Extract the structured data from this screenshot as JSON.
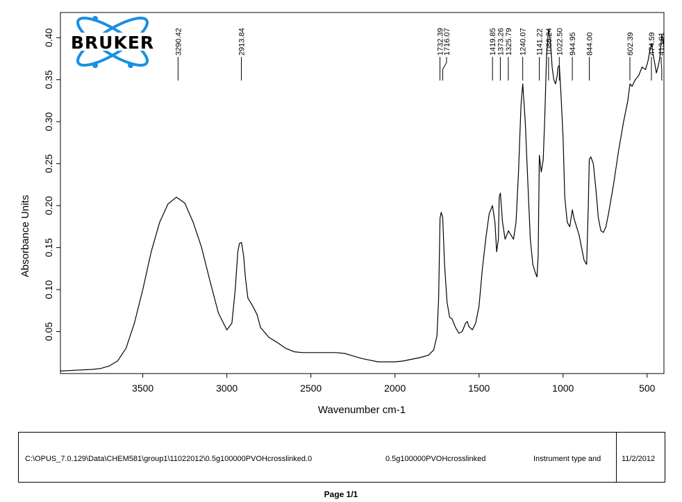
{
  "logo": {
    "text": "BRUKER",
    "ring_color": "#1a8fe3",
    "text_color": "#000000"
  },
  "chart_data": {
    "type": "line",
    "xlabel": "Wavenumber cm-1",
    "ylabel": "Absorbance Units",
    "xlim": [
      3990,
      400
    ],
    "ylim": [
      0.0,
      0.43
    ],
    "x_ticks": [
      3500,
      3000,
      2500,
      2000,
      1500,
      1000,
      500
    ],
    "x_tick_labels": [
      "3500",
      "3000",
      "2500",
      "2000",
      "1500",
      "1000",
      "500"
    ],
    "y_ticks": [
      0.05,
      0.1,
      0.15,
      0.2,
      0.25,
      0.3,
      0.35,
      0.4
    ],
    "y_tick_labels": [
      "0.05",
      "0.10",
      "0.15",
      "0.20",
      "0.25",
      "0.30",
      "0.35",
      "0.40"
    ],
    "series": [
      {
        "color": "#000000",
        "x": [
          3990,
          3900,
          3800,
          3750,
          3700,
          3650,
          3600,
          3550,
          3500,
          3450,
          3400,
          3350,
          3300,
          3250,
          3200,
          3150,
          3100,
          3050,
          3000,
          2970,
          2950,
          2935,
          2925,
          2913,
          2900,
          2890,
          2875,
          2860,
          2845,
          2820,
          2800,
          2750,
          2700,
          2650,
          2600,
          2550,
          2500,
          2450,
          2400,
          2350,
          2300,
          2250,
          2200,
          2150,
          2100,
          2050,
          2000,
          1950,
          1900,
          1850,
          1800,
          1770,
          1750,
          1740,
          1732,
          1725,
          1716,
          1705,
          1690,
          1675,
          1660,
          1640,
          1620,
          1600,
          1580,
          1570,
          1560,
          1540,
          1520,
          1500,
          1480,
          1460,
          1440,
          1420,
          1405,
          1395,
          1385,
          1380,
          1373,
          1360,
          1345,
          1335,
          1325,
          1310,
          1295,
          1280,
          1265,
          1250,
          1240,
          1225,
          1210,
          1195,
          1180,
          1165,
          1155,
          1148,
          1141,
          1130,
          1118,
          1108,
          1098,
          1086,
          1075,
          1065,
          1055,
          1045,
          1035,
          1030,
          1022,
          1012,
          1000,
          990,
          975,
          960,
          945,
          935,
          920,
          905,
          890,
          875,
          860,
          850,
          844,
          835,
          820,
          805,
          790,
          775,
          760,
          745,
          730,
          700,
          670,
          640,
          615,
          602,
          590,
          570,
          550,
          530,
          510,
          495,
          485,
          474,
          465,
          455,
          445,
          435,
          425,
          413,
          405,
          400
        ],
        "y": [
          0.003,
          0.004,
          0.005,
          0.006,
          0.009,
          0.015,
          0.03,
          0.06,
          0.1,
          0.145,
          0.18,
          0.202,
          0.21,
          0.203,
          0.18,
          0.15,
          0.11,
          0.072,
          0.052,
          0.06,
          0.1,
          0.145,
          0.155,
          0.156,
          0.14,
          0.115,
          0.09,
          0.085,
          0.08,
          0.07,
          0.055,
          0.043,
          0.037,
          0.03,
          0.026,
          0.025,
          0.025,
          0.025,
          0.025,
          0.025,
          0.024,
          0.021,
          0.018,
          0.016,
          0.014,
          0.014,
          0.014,
          0.015,
          0.017,
          0.019,
          0.022,
          0.028,
          0.045,
          0.09,
          0.185,
          0.192,
          0.186,
          0.13,
          0.085,
          0.067,
          0.065,
          0.055,
          0.048,
          0.05,
          0.06,
          0.062,
          0.056,
          0.052,
          0.06,
          0.08,
          0.125,
          0.16,
          0.19,
          0.2,
          0.18,
          0.145,
          0.16,
          0.21,
          0.215,
          0.18,
          0.16,
          0.165,
          0.17,
          0.165,
          0.16,
          0.18,
          0.24,
          0.32,
          0.345,
          0.3,
          0.23,
          0.16,
          0.13,
          0.12,
          0.115,
          0.14,
          0.26,
          0.24,
          0.255,
          0.31,
          0.38,
          0.41,
          0.395,
          0.365,
          0.35,
          0.345,
          0.355,
          0.365,
          0.367,
          0.33,
          0.28,
          0.21,
          0.18,
          0.175,
          0.195,
          0.185,
          0.175,
          0.165,
          0.15,
          0.135,
          0.13,
          0.2,
          0.255,
          0.258,
          0.25,
          0.22,
          0.185,
          0.17,
          0.168,
          0.175,
          0.19,
          0.225,
          0.265,
          0.3,
          0.325,
          0.345,
          0.342,
          0.35,
          0.355,
          0.365,
          0.362,
          0.372,
          0.383,
          0.393,
          0.38,
          0.37,
          0.358,
          0.365,
          0.375,
          0.404,
          0.393,
          0.398
        ]
      }
    ],
    "peak_labels": [
      {
        "x": 3290.42,
        "label": "3290.42"
      },
      {
        "x": 2913.84,
        "label": "2913.84"
      },
      {
        "x": 1732.39,
        "label": "1732.39"
      },
      {
        "x": 1716.07,
        "label": "1716.07"
      },
      {
        "x": 1419.85,
        "label": "1419.85"
      },
      {
        "x": 1373.26,
        "label": "1373.26"
      },
      {
        "x": 1325.79,
        "label": "1325.79"
      },
      {
        "x": 1240.07,
        "label": "1240.07"
      },
      {
        "x": 1141.22,
        "label": "1141.22"
      },
      {
        "x": 1086.24,
        "label": "1086.24"
      },
      {
        "x": 1022.5,
        "label": "1022.50"
      },
      {
        "x": 944.95,
        "label": "944.95"
      },
      {
        "x": 844.0,
        "label": "844.00"
      },
      {
        "x": 602.39,
        "label": "602.39"
      },
      {
        "x": 474.59,
        "label": "474.59"
      },
      {
        "x": 413.01,
        "label": "413.01"
      }
    ]
  },
  "footer": {
    "file_path": "C:\\OPUS_7.0.129\\Data\\CHEM581\\group1\\11022012\\0.5g100000PVOHcrosslinked.0",
    "sample_name": "0.5g100000PVOHcrosslinked",
    "instrument": "Instrument type and",
    "date": "11/2/2012"
  },
  "page_label": "Page 1/1"
}
